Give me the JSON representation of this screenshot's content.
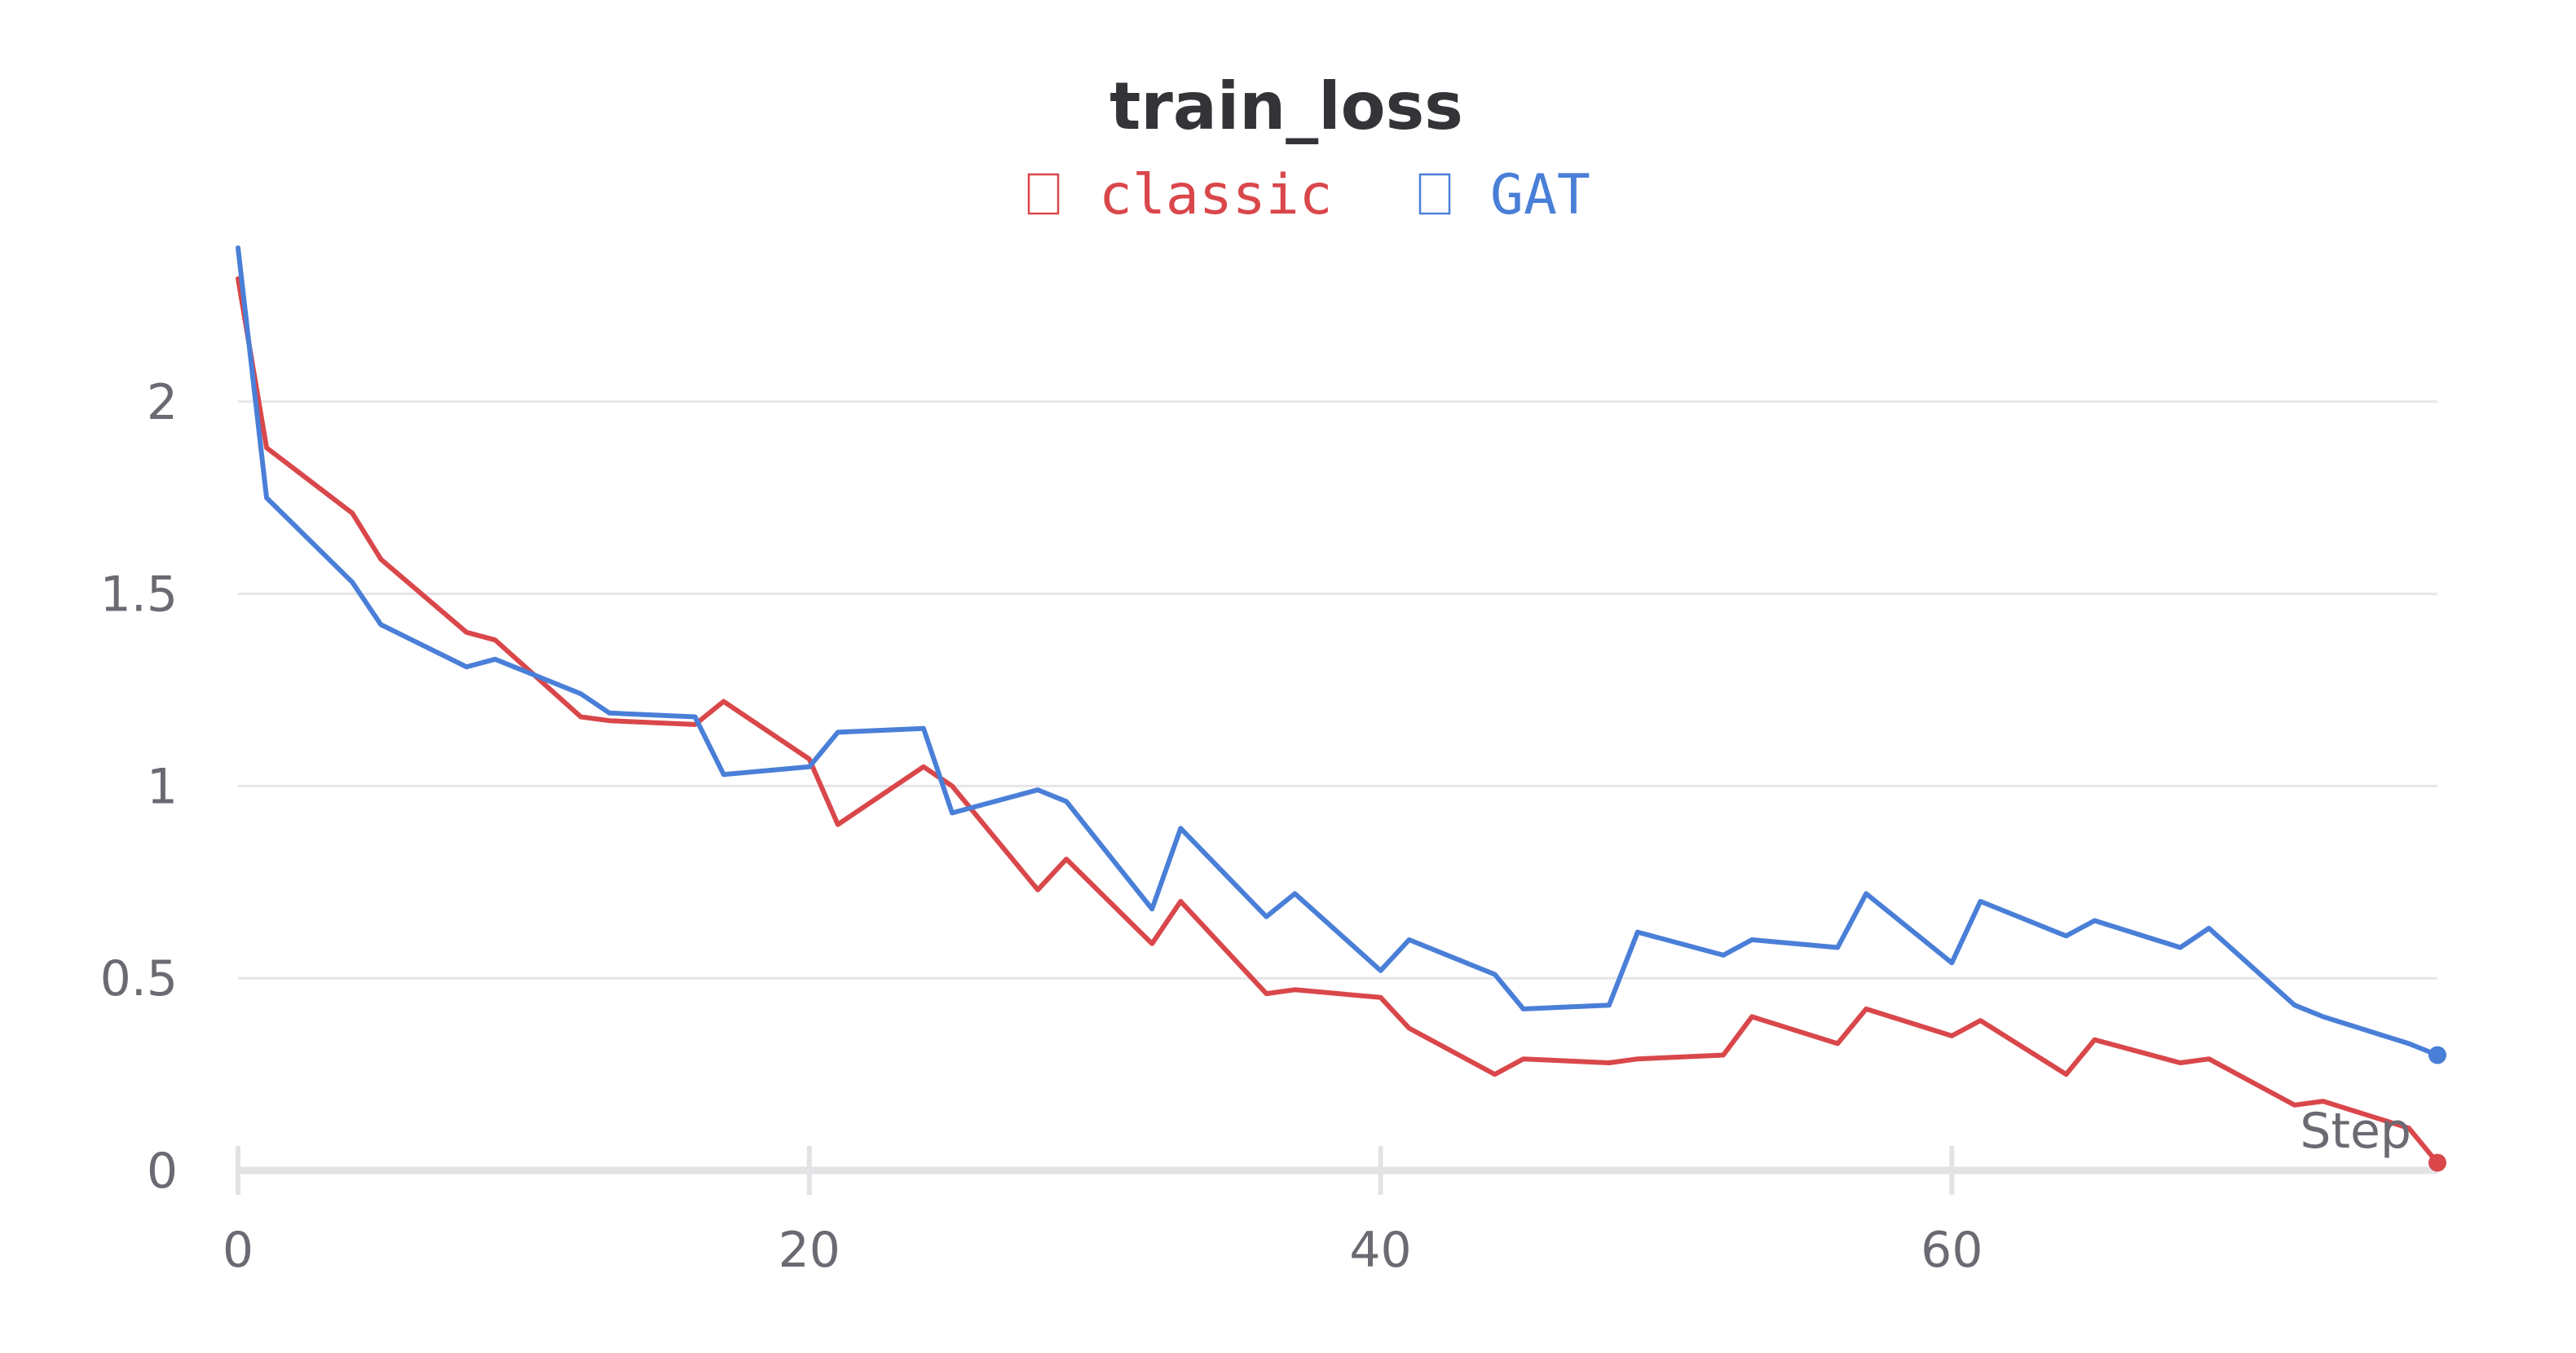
{
  "chart_data": {
    "type": "line",
    "title": "train_loss",
    "xlabel": "Step",
    "ylabel": "",
    "xlim": [
      0,
      77
    ],
    "ylim": [
      0,
      2.43
    ],
    "xticks": [
      0,
      20,
      40,
      60
    ],
    "yticks": [
      0,
      0.5,
      1,
      1.5,
      2
    ],
    "xtick_labels": [
      "0",
      "20",
      "40",
      "60"
    ],
    "ytick_labels": [
      "0",
      "0.5",
      "1",
      "1.5",
      "2"
    ],
    "grid": true,
    "legend_position": "top",
    "series": [
      {
        "name": "classic",
        "color": "#d9474b",
        "x": [
          0,
          1,
          4,
          5,
          8,
          9,
          12,
          13,
          16,
          17,
          20,
          21,
          24,
          25,
          28,
          29,
          32,
          33,
          36,
          37,
          40,
          41,
          44,
          45,
          48,
          49,
          52,
          53,
          56,
          57,
          60,
          61,
          64,
          65,
          68,
          69,
          72,
          73,
          76,
          77
        ],
        "y": [
          2.32,
          1.88,
          1.71,
          1.59,
          1.4,
          1.38,
          1.18,
          1.17,
          1.16,
          1.22,
          1.07,
          0.9,
          1.05,
          1.0,
          0.73,
          0.81,
          0.59,
          0.7,
          0.46,
          0.47,
          0.45,
          0.37,
          0.25,
          0.29,
          0.28,
          0.29,
          0.3,
          0.4,
          0.33,
          0.42,
          0.35,
          0.39,
          0.25,
          0.34,
          0.28,
          0.29,
          0.17,
          0.18,
          0.11,
          0.02
        ]
      },
      {
        "name": "GAT",
        "color": "#4a7fd8",
        "x": [
          0,
          1,
          4,
          5,
          8,
          9,
          12,
          13,
          16,
          17,
          20,
          21,
          24,
          25,
          28,
          29,
          32,
          33,
          36,
          37,
          40,
          41,
          44,
          45,
          48,
          49,
          52,
          53,
          56,
          57,
          60,
          61,
          64,
          65,
          68,
          69,
          72,
          73,
          76,
          77
        ],
        "y": [
          2.4,
          1.75,
          1.53,
          1.42,
          1.31,
          1.33,
          1.24,
          1.19,
          1.18,
          1.03,
          1.05,
          1.14,
          1.15,
          0.93,
          0.99,
          0.96,
          0.68,
          0.89,
          0.66,
          0.72,
          0.52,
          0.6,
          0.51,
          0.42,
          0.43,
          0.62,
          0.56,
          0.6,
          0.58,
          0.72,
          0.54,
          0.7,
          0.61,
          0.65,
          0.58,
          0.63,
          0.43,
          0.4,
          0.33,
          0.3
        ]
      }
    ]
  }
}
